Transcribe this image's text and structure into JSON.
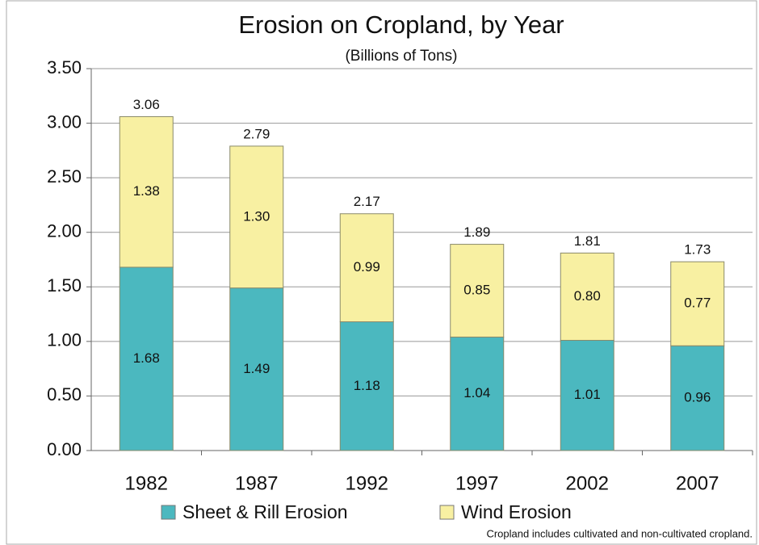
{
  "chart_data": {
    "type": "stacked_bar",
    "title": "Erosion on Cropland, by Year",
    "subtitle": "(Billions of Tons)",
    "categories": [
      "1982",
      "1987",
      "1992",
      "1997",
      "2002",
      "2007"
    ],
    "series": [
      {
        "name": "Sheet & Rill Erosion",
        "color": "#4bb8bf",
        "values": [
          1.68,
          1.49,
          1.18,
          1.04,
          1.01,
          0.96
        ],
        "value_labels": [
          "1.68",
          "1.49",
          "1.18",
          "1.04",
          "1.01",
          "0.96"
        ]
      },
      {
        "name": "Wind Erosion",
        "color": "#f8f0a2",
        "values": [
          1.38,
          1.3,
          0.99,
          0.85,
          0.8,
          0.77
        ],
        "value_labels": [
          "1.38",
          "1.30",
          "0.99",
          "0.85",
          "0.80",
          "0.77"
        ]
      }
    ],
    "totals": [
      3.06,
      2.79,
      2.17,
      1.89,
      1.81,
      1.73
    ],
    "ylim": [
      0,
      3.5
    ],
    "yticks": [
      {
        "value": 0,
        "label": "0.00"
      },
      {
        "value": 0.5,
        "label": "0.50"
      },
      {
        "value": 1,
        "label": "1.00"
      },
      {
        "value": 1.5,
        "label": "1.50"
      },
      {
        "value": 2,
        "label": "2.00"
      },
      {
        "value": 2.5,
        "label": "2.50"
      },
      {
        "value": 3,
        "label": "3.00"
      },
      {
        "value": 3.5,
        "label": "3.50"
      }
    ],
    "grid": true,
    "legend": "bottom",
    "note": "Cropland includes cultivated and non-cultivated cropland."
  }
}
